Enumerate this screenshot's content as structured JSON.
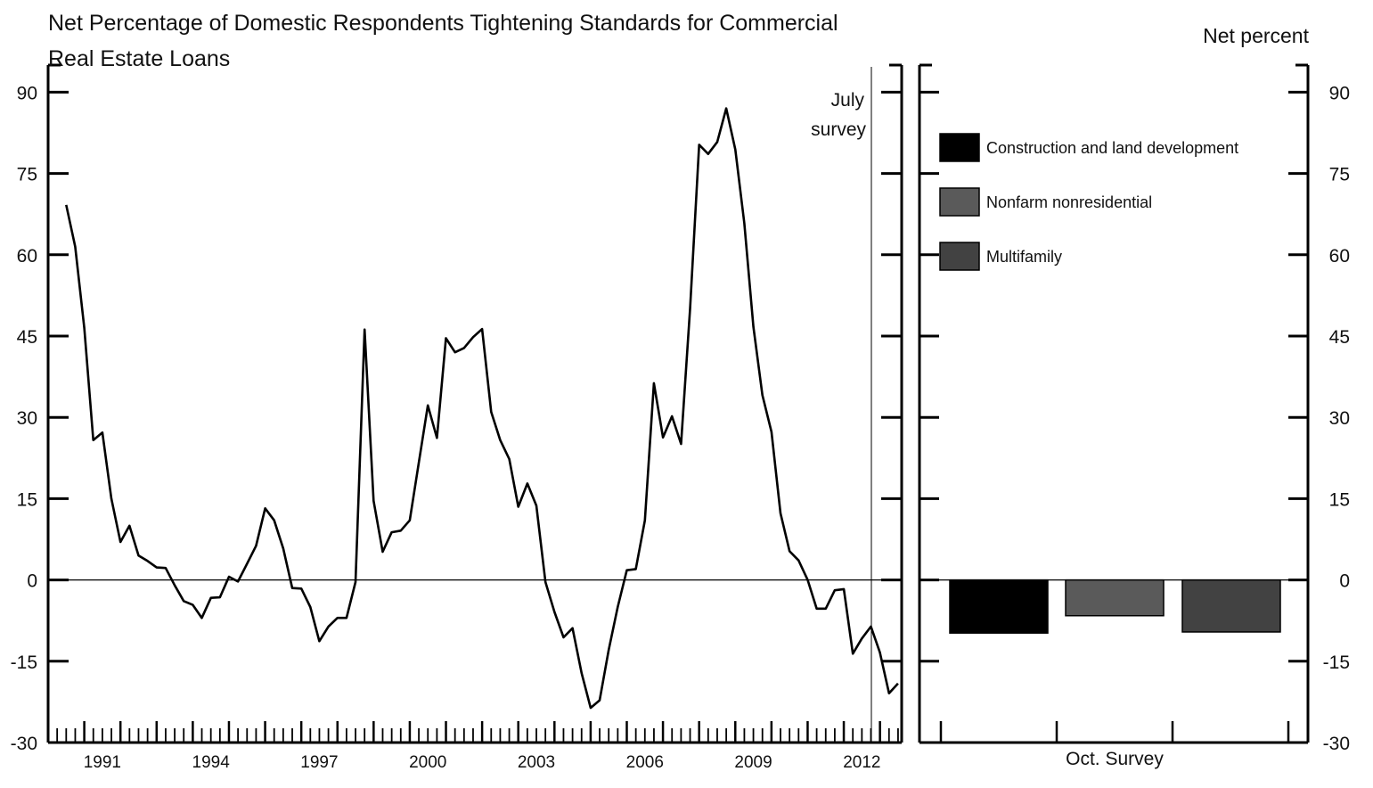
{
  "title": "Net Percentage of Domestic Respondents Tightening Standards for Commercial Real Estate Loans",
  "unit_label": "Net percent",
  "annotation": "July survey",
  "chart_data": [
    {
      "type": "line",
      "title": "Net Percentage of Domestic Respondents Tightening Standards for Commercial Real Estate Loans",
      "xlabel": "",
      "ylabel": "",
      "ylim": [
        -30,
        95
      ],
      "yticks": [
        "90",
        "75",
        "60",
        "45",
        "30",
        "15",
        "0",
        "-15",
        "-30"
      ],
      "xtick_labels": [
        "1991",
        "1994",
        "1997",
        "2000",
        "2003",
        "2006",
        "2009",
        "2012"
      ],
      "xlim": [
        1990.0,
        2013.6
      ],
      "annotation": "July survey",
      "series": [
        {
          "name": "",
          "points": [
            [
              1990.5,
              69.2
            ],
            [
              1990.75,
              61.5
            ],
            [
              1991.0,
              46.5
            ],
            [
              1991.25,
              25.8
            ],
            [
              1991.5,
              27.2
            ],
            [
              1991.75,
              15.0
            ],
            [
              1992.0,
              7.0
            ],
            [
              1992.25,
              10.0
            ],
            [
              1992.5,
              4.5
            ],
            [
              1992.75,
              3.5
            ],
            [
              1993.0,
              2.3
            ],
            [
              1993.25,
              2.2
            ],
            [
              1993.5,
              -1.0
            ],
            [
              1993.75,
              -3.9
            ],
            [
              1994.0,
              -4.6
            ],
            [
              1994.25,
              -7.0
            ],
            [
              1994.5,
              -3.3
            ],
            [
              1994.75,
              -3.2
            ],
            [
              1995.0,
              0.6
            ],
            [
              1995.25,
              -0.3
            ],
            [
              1995.5,
              3.0
            ],
            [
              1995.75,
              6.3
            ],
            [
              1996.0,
              13.2
            ],
            [
              1996.25,
              11.0
            ],
            [
              1996.5,
              5.8
            ],
            [
              1996.75,
              -1.5
            ],
            [
              1997.0,
              -1.6
            ],
            [
              1997.25,
              -5.0
            ],
            [
              1997.5,
              -11.3
            ],
            [
              1997.75,
              -8.6
            ],
            [
              1998.0,
              -7.0
            ],
            [
              1998.25,
              -7.0
            ],
            [
              1998.5,
              -0.4
            ],
            [
              1998.75,
              46.2
            ],
            [
              1999.0,
              14.6
            ],
            [
              1999.25,
              5.2
            ],
            [
              1999.5,
              8.8
            ],
            [
              1999.75,
              9.1
            ],
            [
              2000.0,
              11.0
            ],
            [
              2000.25,
              21.7
            ],
            [
              2000.5,
              32.2
            ],
            [
              2000.75,
              26.2
            ],
            [
              2001.0,
              44.6
            ],
            [
              2001.25,
              42.0
            ],
            [
              2001.5,
              42.8
            ],
            [
              2001.75,
              44.8
            ],
            [
              2002.0,
              46.3
            ],
            [
              2002.25,
              31.0
            ],
            [
              2002.5,
              25.8
            ],
            [
              2002.75,
              22.3
            ],
            [
              2003.0,
              13.5
            ],
            [
              2003.25,
              17.8
            ],
            [
              2003.5,
              13.7
            ],
            [
              2003.75,
              -0.4
            ],
            [
              2004.0,
              -5.9
            ],
            [
              2004.25,
              -10.6
            ],
            [
              2004.5,
              -8.9
            ],
            [
              2004.75,
              -17.2
            ],
            [
              2005.0,
              -23.6
            ],
            [
              2005.25,
              -22.2
            ],
            [
              2005.5,
              -12.9
            ],
            [
              2005.75,
              -5.0
            ],
            [
              2006.0,
              1.8
            ],
            [
              2006.25,
              2.0
            ],
            [
              2006.5,
              11.0
            ],
            [
              2006.75,
              36.3
            ],
            [
              2007.0,
              26.3
            ],
            [
              2007.25,
              30.2
            ],
            [
              2007.5,
              25.1
            ],
            [
              2007.75,
              50.0
            ],
            [
              2008.0,
              80.3
            ],
            [
              2008.25,
              78.6
            ],
            [
              2008.5,
              80.8
            ],
            [
              2008.75,
              87.0
            ],
            [
              2009.0,
              79.4
            ],
            [
              2009.25,
              65.8
            ],
            [
              2009.5,
              46.7
            ],
            [
              2009.75,
              34.1
            ],
            [
              2010.0,
              27.3
            ],
            [
              2010.25,
              12.3
            ],
            [
              2010.5,
              5.3
            ],
            [
              2010.75,
              3.6
            ],
            [
              2011.0,
              0.0
            ],
            [
              2011.25,
              -5.3
            ],
            [
              2011.5,
              -5.3
            ],
            [
              2011.75,
              -1.9
            ],
            [
              2012.0,
              -1.7
            ],
            [
              2012.25,
              -13.6
            ],
            [
              2012.5,
              -10.8
            ],
            [
              2012.75,
              -8.6
            ],
            [
              2013.0,
              -13.4
            ],
            [
              2013.25,
              -20.9
            ],
            [
              2013.5,
              -19.1
            ]
          ]
        }
      ]
    },
    {
      "type": "bar",
      "xlabel": "Oct. Survey",
      "ylim": [
        -30,
        95
      ],
      "yticks": [
        "90",
        "75",
        "60",
        "45",
        "30",
        "15",
        "0",
        "-15",
        "-30"
      ],
      "legend": "top-left",
      "categories": [
        "Construction and land development",
        "Nonfarm nonresidential",
        "Multifamily"
      ],
      "values": [
        -9.8,
        -6.6,
        -9.6
      ],
      "colors": [
        "#000000",
        "#5a5a5a",
        "#424242"
      ]
    }
  ]
}
